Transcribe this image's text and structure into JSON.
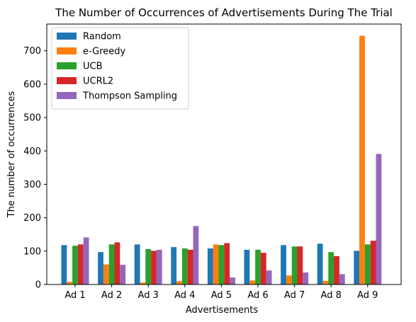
{
  "chart_data": {
    "type": "bar",
    "title": "The Number of Occurrences of Advertisements During The Trial",
    "xlabel": "Advertisements",
    "ylabel": "The number of occurrences",
    "ylim": [
      0,
      780
    ],
    "yticks": [
      0,
      100,
      200,
      300,
      400,
      500,
      600,
      700
    ],
    "grid": false,
    "legend_position": "top-left",
    "categories": [
      "Ad 1",
      "Ad 2",
      "Ad 3",
      "Ad 4",
      "Ad 5",
      "Ad 6",
      "Ad 7",
      "Ad 8",
      "Ad 9"
    ],
    "series": [
      {
        "name": "Random",
        "color": "#1f77b4",
        "values": [
          118,
          97,
          120,
          112,
          108,
          104,
          118,
          122,
          101
        ]
      },
      {
        "name": "e-Greedy",
        "color": "#ff7f0e",
        "values": [
          8,
          60,
          6,
          10,
          120,
          12,
          27,
          11,
          745
        ]
      },
      {
        "name": "UCB",
        "color": "#2ca02c",
        "values": [
          116,
          120,
          106,
          108,
          118,
          104,
          114,
          97,
          120
        ]
      },
      {
        "name": "UCRL2",
        "color": "#d62728",
        "values": [
          120,
          126,
          101,
          104,
          124,
          95,
          114,
          85,
          131
        ]
      },
      {
        "name": "Thompson Sampling",
        "color": "#9467bd",
        "values": [
          141,
          59,
          104,
          175,
          21,
          42,
          36,
          31,
          391
        ]
      }
    ]
  }
}
